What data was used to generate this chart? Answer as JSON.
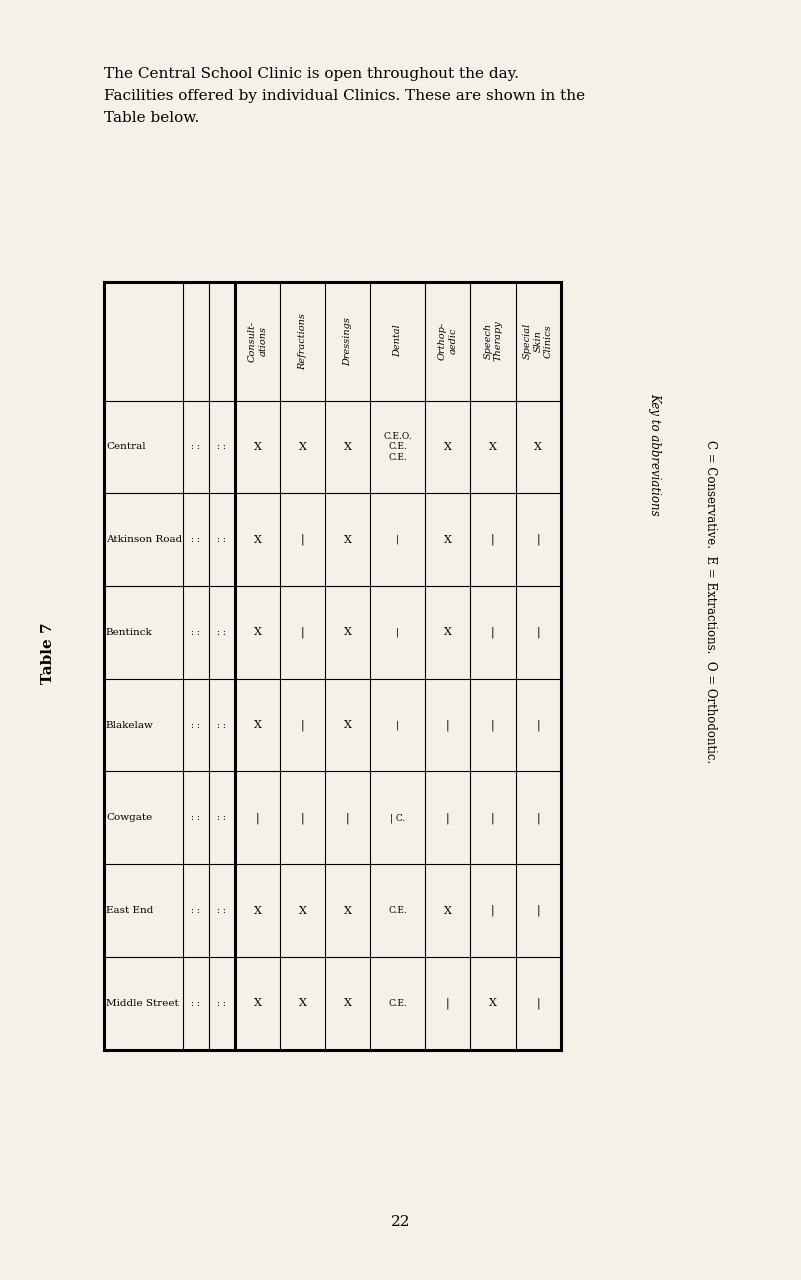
{
  "title_text": "The Central School Clinic is open throughout the day.\nFacilities offered by individual Clinics. These are shown in the\nTable below.",
  "table_label": "Table 7",
  "page_number": "22",
  "bg_color": "#f5f0e8",
  "rows": [
    "Central",
    "Atkinson Road",
    "Bentinck",
    "Blakelaw",
    "Cowgate",
    "East End",
    "Middle Street"
  ],
  "col_headers": [
    "Consult-\nations",
    "Refractions",
    "Dressings",
    "Dental",
    "Orthop-\naedic",
    "Speech\nTherapy",
    "Special\nSkin\nClinics"
  ],
  "cell_data": [
    [
      "X",
      "X",
      "X",
      "C.E.O.\nC.E.\nC.E.",
      "X",
      "X",
      "X"
    ],
    [
      "X",
      "|",
      "X",
      "|",
      "X",
      "|",
      "|"
    ],
    [
      "X",
      "|",
      "X",
      "|",
      "X",
      "|",
      "|"
    ],
    [
      "X",
      "|",
      "X",
      "|",
      "|",
      "|",
      "|"
    ],
    [
      "|",
      "|",
      "|",
      "| C.",
      "|",
      "|",
      "|"
    ],
    [
      "X",
      "X",
      "X",
      "C.E.",
      "X",
      "|",
      "|"
    ],
    [
      "X",
      "X",
      "X",
      "C.E.",
      "|",
      "X",
      "|"
    ]
  ]
}
